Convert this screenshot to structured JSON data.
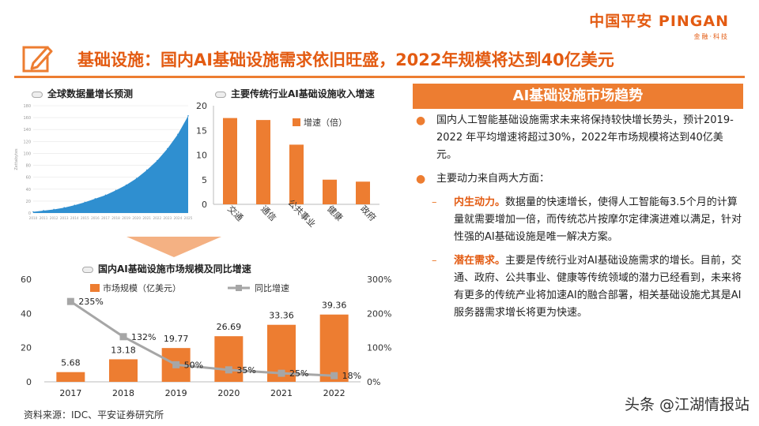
{
  "logo": {
    "main": "中国平安 PINGAN",
    "sub": "金融·科技"
  },
  "title": "基础设施：国内AI基础设施需求依旧旺盛，2022年规模将达到40亿美元",
  "icon": "edit-pencil-icon",
  "colors": {
    "accent": "#ed7d31",
    "title": "#e35b12",
    "blue": "#2f8fd0",
    "gray": "#a6a6a6"
  },
  "chart_data": [
    {
      "type": "area",
      "title": "全球数据量增长预测",
      "x": [
        "2010",
        "2011",
        "2012",
        "2013",
        "2014",
        "2015",
        "2016",
        "2017",
        "2018",
        "2019",
        "2020",
        "2021",
        "2022",
        "2023",
        "2024",
        "2025"
      ],
      "values": [
        2,
        4,
        6,
        9,
        13,
        18,
        24,
        30,
        38,
        47,
        58,
        72,
        88,
        108,
        132,
        163
      ],
      "ylim": [
        0,
        180
      ],
      "yticks": [
        "0",
        "20",
        "40",
        "60",
        "80",
        "100",
        "120",
        "140",
        "160",
        "180"
      ],
      "ylabel": "Zettabytes"
    },
    {
      "type": "bar",
      "title": "主要传统行业AI基础设施收入增速",
      "categories": [
        "交通",
        "通信",
        "公共事业",
        "健康",
        "政府"
      ],
      "series": [
        {
          "name": "增速（倍）",
          "values": [
            17.5,
            17.1,
            12.1,
            5.0,
            4.6
          ]
        }
      ],
      "ylim": [
        0,
        20
      ],
      "yticks": [
        "0",
        "5",
        "10",
        "15",
        "20"
      ],
      "legend": "top-right"
    },
    {
      "type": "bar",
      "title": "国内AI基础设施市场规模及同比增速",
      "categories": [
        "2017",
        "2018",
        "2019",
        "2020",
        "2021",
        "2022"
      ],
      "series": [
        {
          "name": "市场规模（亿美元）",
          "values": [
            5.68,
            13.18,
            19.77,
            26.69,
            33.36,
            39.36
          ],
          "labels": [
            "5.68",
            "13.18",
            "19.77",
            "26.69",
            "33.36",
            "39.36"
          ]
        },
        {
          "name": "同比增速",
          "values": [
            235,
            132,
            50,
            35,
            25,
            18
          ],
          "labels": [
            "235%",
            "132%",
            "50%",
            "35%",
            "25%",
            "18%"
          ]
        }
      ],
      "ylim": [
        0,
        60
      ],
      "yticks": [
        "0",
        "20",
        "40",
        "60"
      ],
      "y2lim": [
        0,
        300
      ],
      "y2ticks": [
        "0%",
        "100%",
        "200%",
        "300%"
      ],
      "legend": "top"
    }
  ],
  "right": {
    "header": "AI基础设施市场趋势",
    "p1": "国内人工智能基础设施需求未来将保持较快增长势头，预计2019-2022 年平均增速将超过30%，2022年市场规模将达到40亿美元。",
    "p2": "主要动力来自两大方面：",
    "s1_kw": "内生动力。",
    "s1": "数据量的快速增长，使得人工智能每3.5个月的计算量就需要增加一倍，而传统芯片按摩尔定律演进难以满足，针对性强的AI基础设施是唯一解决方案。",
    "s2_kw": "潜在需求。",
    "s2": "主要是传统行业对AI基础设施需求的增长。目前，交通、政府、公共事业、健康等传统领域的潜力已经看到，未来将有更多的传统产业将加速AI的融合部署，相关基础设施尤其是AI服务器需求增长将更为快速。"
  },
  "source": "资料来源：IDC、平安证券研究所",
  "watermark": "头条 @江湖情报站"
}
